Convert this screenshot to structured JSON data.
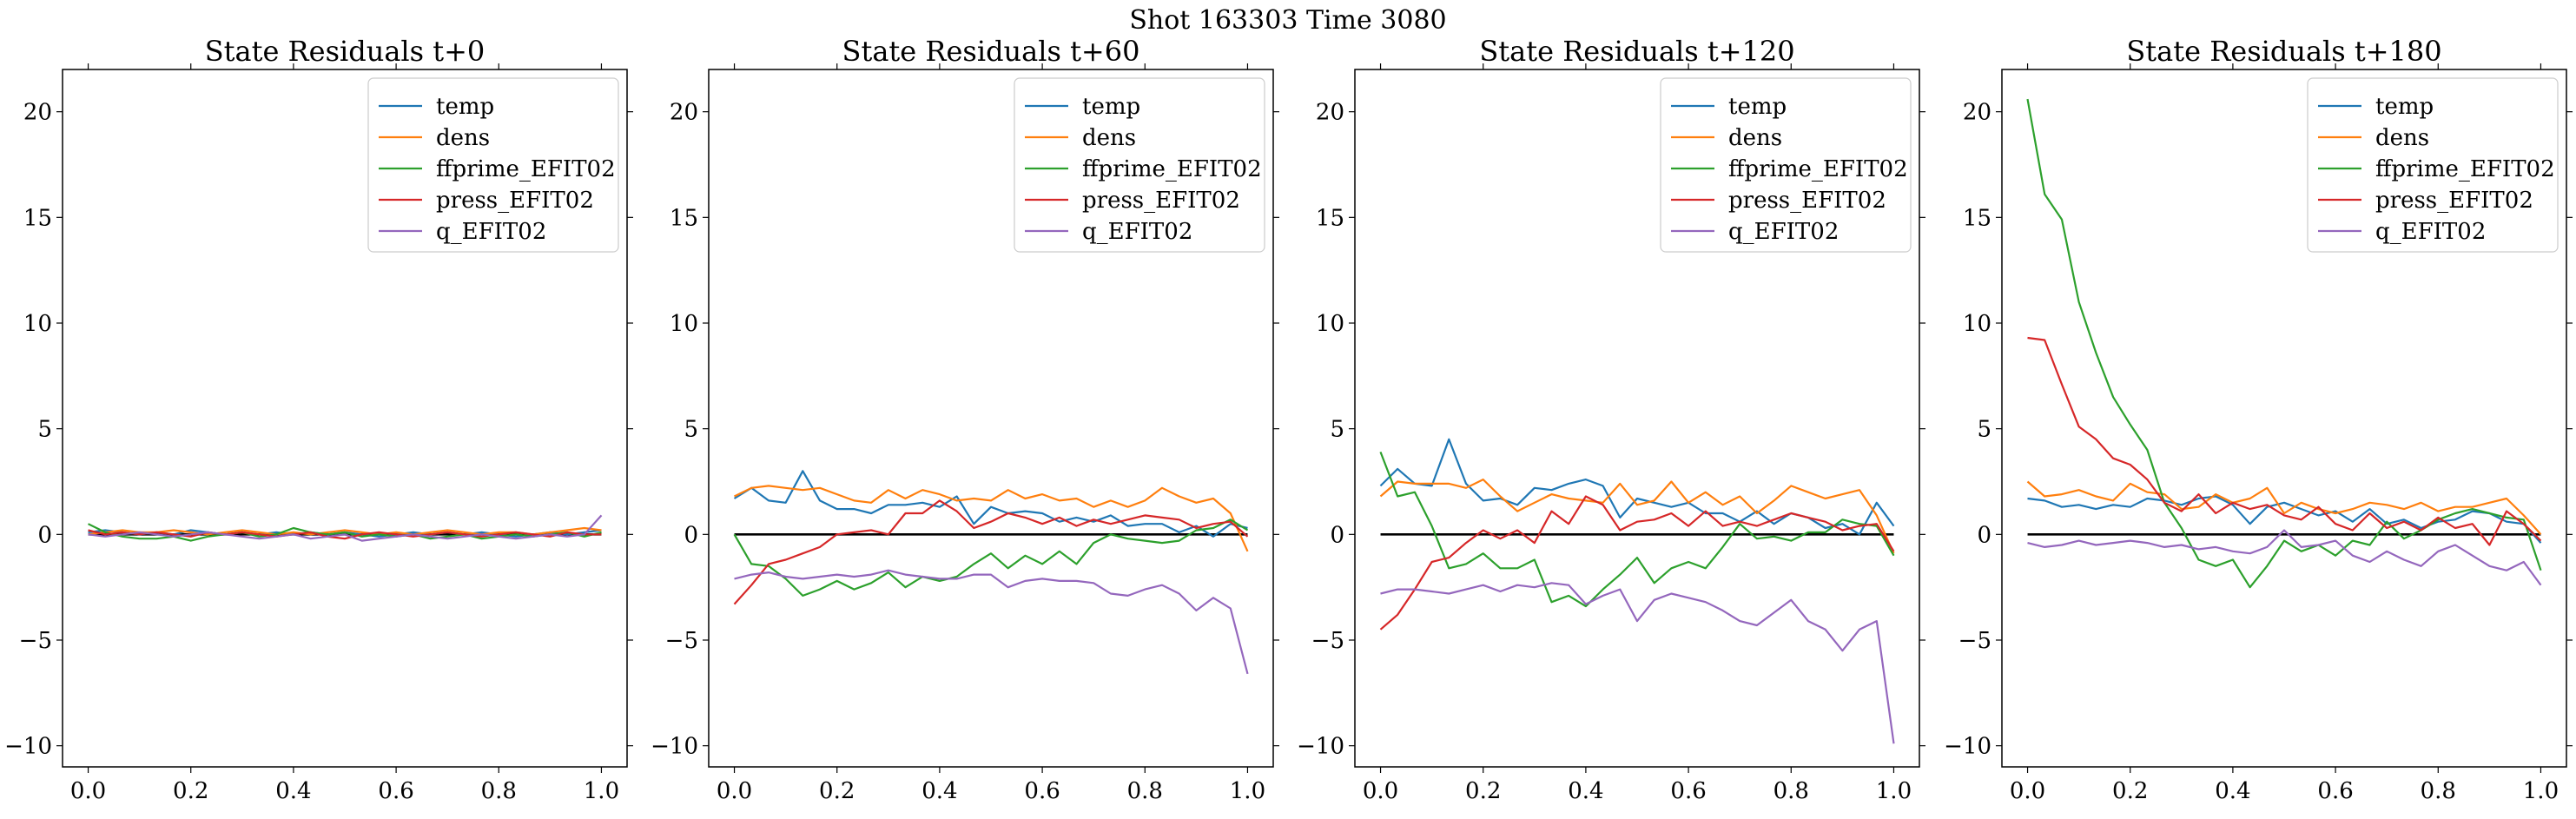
{
  "figure": {
    "suptitle": "Shot 163303   Time 3080"
  },
  "colors": {
    "temp": "#1f77b4",
    "dens": "#ff7f0e",
    "ffprime_EFIT02": "#2ca02c",
    "press_EFIT02": "#d62728",
    "q_EFIT02": "#9467bd",
    "zero_line": "#000000"
  },
  "chart_data": [
    {
      "type": "line",
      "title": "State Residuals t+0",
      "xlim": [
        -0.05,
        1.05
      ],
      "ylim": [
        -11,
        22
      ],
      "xticks": [
        0.0,
        0.2,
        0.4,
        0.6,
        0.8,
        1.0
      ],
      "xtick_labels": [
        "0.0",
        "0.2",
        "0.4",
        "0.6",
        "0.8",
        "1.0"
      ],
      "yticks": [
        -10,
        -5,
        0,
        5,
        10,
        15,
        20
      ],
      "ytick_labels": [
        "−10",
        "−5",
        "0",
        "5",
        "10",
        "15",
        "20"
      ],
      "legend_loc": "upper right",
      "x": [
        0.0,
        0.0333,
        0.0667,
        0.1,
        0.1333,
        0.1667,
        0.2,
        0.2333,
        0.2667,
        0.3,
        0.3333,
        0.3667,
        0.4,
        0.4333,
        0.4667,
        0.5,
        0.5333,
        0.5667,
        0.6,
        0.6333,
        0.6667,
        0.7,
        0.7333,
        0.7667,
        0.8,
        0.8333,
        0.8667,
        0.9,
        0.9333,
        0.9667,
        1.0
      ],
      "series": [
        {
          "name": "temp",
          "values": [
            0.1,
            0.2,
            0.1,
            0.0,
            0.1,
            0.0,
            0.2,
            0.1,
            0.0,
            0.1,
            0.0,
            0.1,
            0.0,
            0.1,
            0.0,
            0.1,
            0.0,
            -0.1,
            0.0,
            0.1,
            0.0,
            0.1,
            0.0,
            0.1,
            0.0,
            -0.1,
            0.0,
            0.1,
            0.0,
            0.1,
            0.2
          ]
        },
        {
          "name": "dens",
          "values": [
            0.0,
            0.1,
            0.2,
            0.1,
            0.1,
            0.2,
            0.1,
            0.0,
            0.1,
            0.2,
            0.1,
            0.0,
            0.1,
            0.0,
            0.1,
            0.2,
            0.1,
            0.0,
            0.1,
            0.0,
            0.1,
            0.2,
            0.1,
            0.0,
            0.1,
            0.1,
            0.0,
            0.1,
            0.2,
            0.3,
            0.2
          ]
        },
        {
          "name": "ffprime_EFIT02",
          "values": [
            0.5,
            0.1,
            -0.1,
            -0.2,
            -0.2,
            -0.1,
            -0.3,
            -0.1,
            0.0,
            0.1,
            -0.1,
            0.0,
            0.3,
            0.1,
            0.0,
            0.1,
            -0.1,
            0.0,
            -0.1,
            0.0,
            -0.2,
            -0.1,
            0.0,
            -0.2,
            -0.1,
            0.0,
            -0.1,
            0.0,
            0.1,
            -0.1,
            0.1
          ]
        },
        {
          "name": "press_EFIT02",
          "values": [
            0.2,
            0.0,
            0.1,
            0.0,
            0.1,
            0.0,
            -0.1,
            0.1,
            0.0,
            0.1,
            0.0,
            -0.1,
            0.0,
            0.1,
            -0.1,
            -0.2,
            0.0,
            0.1,
            0.0,
            -0.1,
            0.0,
            0.1,
            0.0,
            -0.1,
            0.0,
            0.1,
            0.0,
            -0.1,
            0.1,
            0.0,
            0.0
          ]
        },
        {
          "name": "q_EFIT02",
          "values": [
            0.0,
            -0.1,
            0.0,
            0.1,
            0.0,
            -0.1,
            0.0,
            0.1,
            0.0,
            -0.1,
            -0.2,
            -0.1,
            0.0,
            -0.2,
            -0.1,
            0.0,
            -0.3,
            -0.2,
            -0.1,
            0.0,
            -0.1,
            -0.2,
            -0.1,
            0.0,
            -0.1,
            -0.2,
            -0.1,
            0.0,
            -0.1,
            0.0,
            0.9
          ]
        }
      ]
    },
    {
      "type": "line",
      "title": "State Residuals t+60",
      "xlim": [
        -0.05,
        1.05
      ],
      "ylim": [
        -11,
        22
      ],
      "xticks": [
        0.0,
        0.2,
        0.4,
        0.6,
        0.8,
        1.0
      ],
      "xtick_labels": [
        "0.0",
        "0.2",
        "0.4",
        "0.6",
        "0.8",
        "1.0"
      ],
      "yticks": [
        -10,
        -5,
        0,
        5,
        10,
        15,
        20
      ],
      "ytick_labels": [
        "−10",
        "−5",
        "0",
        "5",
        "10",
        "15",
        "20"
      ],
      "legend_loc": "upper right",
      "x": [
        0.0,
        0.0333,
        0.0667,
        0.1,
        0.1333,
        0.1667,
        0.2,
        0.2333,
        0.2667,
        0.3,
        0.3333,
        0.3667,
        0.4,
        0.4333,
        0.4667,
        0.5,
        0.5333,
        0.5667,
        0.6,
        0.6333,
        0.6667,
        0.7,
        0.7333,
        0.7667,
        0.8,
        0.8333,
        0.8667,
        0.9,
        0.9333,
        0.9667,
        1.0
      ],
      "series": [
        {
          "name": "temp",
          "values": [
            1.7,
            2.2,
            1.6,
            1.5,
            3.0,
            1.6,
            1.2,
            1.2,
            1.0,
            1.4,
            1.4,
            1.5,
            1.3,
            1.8,
            0.5,
            1.3,
            1.0,
            1.1,
            1.0,
            0.6,
            0.8,
            0.6,
            0.9,
            0.4,
            0.5,
            0.5,
            0.1,
            0.4,
            -0.1,
            0.5,
            0.3
          ]
        },
        {
          "name": "dens",
          "values": [
            1.8,
            2.2,
            2.3,
            2.2,
            2.1,
            2.2,
            1.9,
            1.6,
            1.5,
            2.1,
            1.7,
            2.1,
            1.9,
            1.6,
            1.7,
            1.6,
            2.1,
            1.7,
            1.9,
            1.6,
            1.7,
            1.3,
            1.6,
            1.3,
            1.6,
            2.2,
            1.8,
            1.5,
            1.7,
            1.0,
            -0.8
          ]
        },
        {
          "name": "ffprime_EFIT02",
          "values": [
            0.0,
            -1.4,
            -1.5,
            -2.1,
            -2.9,
            -2.6,
            -2.2,
            -2.6,
            -2.3,
            -1.8,
            -2.5,
            -2.0,
            -2.2,
            -2.0,
            -1.4,
            -0.9,
            -1.6,
            -1.0,
            -1.4,
            -0.8,
            -1.4,
            -0.4,
            0.0,
            -0.2,
            -0.3,
            -0.4,
            -0.3,
            0.2,
            0.3,
            0.7,
            0.2
          ]
        },
        {
          "name": "press_EFIT02",
          "values": [
            -3.3,
            -2.4,
            -1.4,
            -1.2,
            -0.9,
            -0.6,
            0.0,
            0.1,
            0.2,
            0.0,
            1.0,
            1.0,
            1.6,
            1.1,
            0.3,
            0.6,
            1.0,
            0.8,
            0.5,
            0.8,
            0.4,
            0.7,
            0.5,
            0.7,
            0.9,
            0.8,
            0.7,
            0.3,
            0.5,
            0.6,
            -0.1
          ]
        },
        {
          "name": "q_EFIT02",
          "values": [
            -2.1,
            -1.9,
            -1.8,
            -2.0,
            -2.1,
            -2.0,
            -1.9,
            -2.0,
            -1.9,
            -1.7,
            -1.9,
            -2.0,
            -2.1,
            -2.1,
            -1.9,
            -1.9,
            -2.5,
            -2.2,
            -2.1,
            -2.2,
            -2.2,
            -2.3,
            -2.8,
            -2.9,
            -2.6,
            -2.4,
            -2.8,
            -3.6,
            -3.0,
            -3.5,
            -6.6
          ]
        }
      ]
    },
    {
      "type": "line",
      "title": "State Residuals t+120",
      "xlim": [
        -0.05,
        1.05
      ],
      "ylim": [
        -11,
        22
      ],
      "xticks": [
        0.0,
        0.2,
        0.4,
        0.6,
        0.8,
        1.0
      ],
      "xtick_labels": [
        "0.0",
        "0.2",
        "0.4",
        "0.6",
        "0.8",
        "1.0"
      ],
      "yticks": [
        -10,
        -5,
        0,
        5,
        10,
        15,
        20
      ],
      "ytick_labels": [
        "−10",
        "−5",
        "0",
        "5",
        "10",
        "15",
        "20"
      ],
      "legend_loc": "upper right",
      "x": [
        0.0,
        0.0333,
        0.0667,
        0.1,
        0.1333,
        0.1667,
        0.2,
        0.2333,
        0.2667,
        0.3,
        0.3333,
        0.3667,
        0.4,
        0.4333,
        0.4667,
        0.5,
        0.5333,
        0.5667,
        0.6,
        0.6333,
        0.6667,
        0.7,
        0.7333,
        0.7667,
        0.8,
        0.8333,
        0.8667,
        0.9,
        0.9333,
        0.9667,
        1.0
      ],
      "series": [
        {
          "name": "temp",
          "values": [
            2.3,
            3.1,
            2.4,
            2.3,
            4.5,
            2.4,
            1.6,
            1.7,
            1.4,
            2.2,
            2.1,
            2.4,
            2.6,
            2.3,
            0.8,
            1.7,
            1.5,
            1.3,
            1.5,
            1.0,
            1.0,
            0.6,
            1.1,
            0.5,
            1.0,
            0.8,
            0.3,
            0.5,
            0.0,
            1.5,
            0.4
          ]
        },
        {
          "name": "dens",
          "values": [
            1.8,
            2.5,
            2.4,
            2.4,
            2.4,
            2.2,
            2.6,
            1.8,
            1.1,
            1.5,
            1.9,
            1.7,
            1.6,
            1.5,
            2.4,
            1.4,
            1.6,
            2.5,
            1.5,
            2.0,
            1.4,
            1.8,
            1.0,
            1.6,
            2.3,
            2.0,
            1.7,
            1.9,
            2.1,
            0.9,
            -0.9
          ]
        },
        {
          "name": "ffprime_EFIT02",
          "values": [
            3.9,
            1.8,
            2.0,
            0.4,
            -1.6,
            -1.4,
            -0.9,
            -1.6,
            -1.6,
            -1.2,
            -3.2,
            -2.9,
            -3.4,
            -2.6,
            -1.9,
            -1.1,
            -2.3,
            -1.6,
            -1.3,
            -1.6,
            -0.6,
            0.5,
            -0.2,
            -0.1,
            -0.3,
            0.1,
            0.1,
            0.7,
            0.5,
            0.4,
            -1.0
          ]
        },
        {
          "name": "press_EFIT02",
          "values": [
            -4.5,
            -3.8,
            -2.6,
            -1.3,
            -1.1,
            -0.4,
            0.2,
            -0.2,
            0.2,
            -0.4,
            1.1,
            0.5,
            1.8,
            1.4,
            0.2,
            0.6,
            0.7,
            1.0,
            0.4,
            1.1,
            0.4,
            0.6,
            0.4,
            0.7,
            1.0,
            0.8,
            0.6,
            0.2,
            0.4,
            0.5,
            -0.8
          ]
        },
        {
          "name": "q_EFIT02",
          "values": [
            -2.8,
            -2.6,
            -2.6,
            -2.7,
            -2.8,
            -2.6,
            -2.4,
            -2.7,
            -2.4,
            -2.5,
            -2.3,
            -2.4,
            -3.3,
            -2.9,
            -2.6,
            -4.1,
            -3.1,
            -2.8,
            -3.0,
            -3.2,
            -3.6,
            -4.1,
            -4.3,
            -3.7,
            -3.1,
            -4.1,
            -4.5,
            -5.5,
            -4.5,
            -4.1,
            -9.9
          ]
        }
      ]
    },
    {
      "type": "line",
      "title": "State Residuals t+180",
      "xlim": [
        -0.05,
        1.05
      ],
      "ylim": [
        -11,
        22
      ],
      "xticks": [
        0.0,
        0.2,
        0.4,
        0.6,
        0.8,
        1.0
      ],
      "xtick_labels": [
        "0.0",
        "0.2",
        "0.4",
        "0.6",
        "0.8",
        "1.0"
      ],
      "yticks": [
        -10,
        -5,
        0,
        5,
        10,
        15,
        20
      ],
      "ytick_labels": [
        "−10",
        "−5",
        "0",
        "5",
        "10",
        "15",
        "20"
      ],
      "legend_loc": "upper right",
      "x": [
        0.0,
        0.0333,
        0.0667,
        0.1,
        0.1333,
        0.1667,
        0.2,
        0.2333,
        0.2667,
        0.3,
        0.3333,
        0.3667,
        0.4,
        0.4333,
        0.4667,
        0.5,
        0.5333,
        0.5667,
        0.6,
        0.6333,
        0.6667,
        0.7,
        0.7333,
        0.7667,
        0.8,
        0.8333,
        0.8667,
        0.9,
        0.9333,
        0.9667,
        1.0
      ],
      "series": [
        {
          "name": "temp",
          "values": [
            1.7,
            1.6,
            1.3,
            1.4,
            1.2,
            1.4,
            1.3,
            1.7,
            1.6,
            1.4,
            1.7,
            1.8,
            1.4,
            0.5,
            1.3,
            1.5,
            1.2,
            0.9,
            1.1,
            0.6,
            1.2,
            0.5,
            0.7,
            0.3,
            0.6,
            0.7,
            1.1,
            1.0,
            0.6,
            0.5,
            -0.4
          ]
        },
        {
          "name": "dens",
          "values": [
            2.5,
            1.8,
            1.9,
            2.1,
            1.8,
            1.6,
            2.4,
            2.0,
            1.9,
            1.2,
            1.3,
            1.9,
            1.5,
            1.7,
            2.2,
            1.0,
            1.5,
            1.2,
            1.0,
            1.2,
            1.5,
            1.4,
            1.2,
            1.5,
            1.1,
            1.3,
            1.3,
            1.5,
            1.7,
            0.9,
            0.0
          ]
        },
        {
          "name": "ffprime_EFIT02",
          "values": [
            20.6,
            16.1,
            14.9,
            11.0,
            8.6,
            6.5,
            5.2,
            4.0,
            1.5,
            0.3,
            -1.2,
            -1.5,
            -1.2,
            -2.5,
            -1.5,
            -0.3,
            -0.8,
            -0.5,
            -1.0,
            -0.3,
            -0.5,
            0.6,
            -0.2,
            0.2,
            0.7,
            1.0,
            1.2,
            1.0,
            0.8,
            0.7,
            -1.7
          ]
        },
        {
          "name": "press_EFIT02",
          "values": [
            9.3,
            9.2,
            7.1,
            5.1,
            4.5,
            3.6,
            3.3,
            2.6,
            1.5,
            1.1,
            1.9,
            1.0,
            1.5,
            1.2,
            1.4,
            0.9,
            0.7,
            1.3,
            0.5,
            0.2,
            1.0,
            0.3,
            0.6,
            0.2,
            0.8,
            0.3,
            0.5,
            -0.5,
            1.1,
            0.5,
            -0.3
          ]
        },
        {
          "name": "q_EFIT02",
          "values": [
            -0.4,
            -0.6,
            -0.5,
            -0.3,
            -0.5,
            -0.4,
            -0.3,
            -0.4,
            -0.6,
            -0.5,
            -0.7,
            -0.6,
            -0.8,
            -0.9,
            -0.6,
            0.2,
            -0.6,
            -0.5,
            -0.3,
            -1.0,
            -1.3,
            -0.8,
            -1.2,
            -1.5,
            -0.8,
            -0.5,
            -1.0,
            -1.5,
            -1.7,
            -1.3,
            -2.4
          ]
        }
      ]
    }
  ]
}
